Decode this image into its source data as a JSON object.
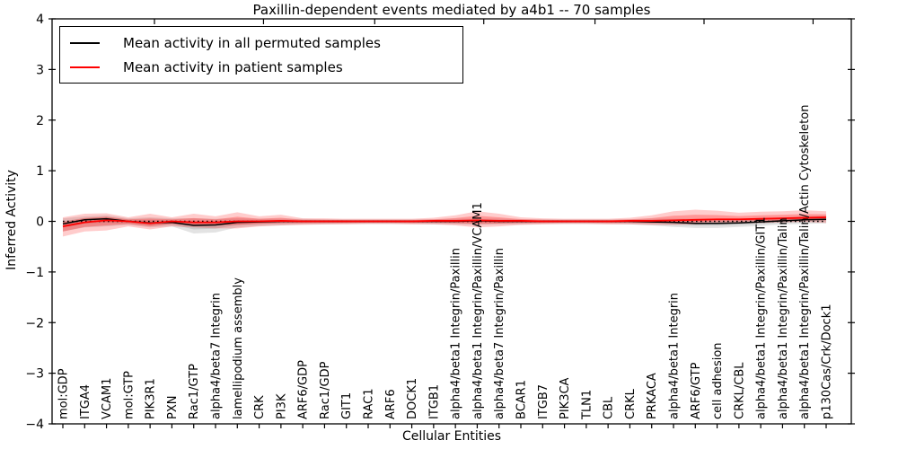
{
  "chart_data": {
    "type": "line",
    "title": "Paxillin-dependent events mediated by a4b1 -- 70 samples",
    "xlabel": "Cellular Entities",
    "ylabel": "Inferred Activity",
    "ylim": [
      -4,
      4
    ],
    "yticks": [
      -4,
      -3,
      -2,
      -1,
      0,
      1,
      2,
      3,
      4
    ],
    "grid": false,
    "legend_position": "upper left",
    "baseline": {
      "y": 0,
      "style": "dotted",
      "color": "#000000"
    },
    "top_ticks_x": [
      4.2,
      9.2,
      14.3,
      19.3,
      24.4,
      29.4,
      34.4
    ],
    "categories": [
      "mol:GDP",
      "ITGA4",
      "VCAM1",
      "mol:GTP",
      "PIK3R1",
      "PXN",
      "Rac1/GTP",
      "alpha4/beta7 Integrin",
      "lamellipodium assembly",
      "CRK",
      "PI3K",
      "ARF6/GDP",
      "Rac1/GDP",
      "GIT1",
      "RAC1",
      "ARF6",
      "DOCK1",
      "ITGB1",
      "alpha4/beta1 Integrin/Paxillin",
      "alpha4/beta1 Integrin/Paxillin/VCAM1",
      "alpha4/beta7 Integrin/Paxillin",
      "BCAR1",
      "ITGB7",
      "PIK3CA",
      "TLN1",
      "CBL",
      "CRKL",
      "PRKACA",
      "alpha4/beta1 Integrin",
      "ARF6/GTP",
      "cell adhesion",
      "CRKL/CBL",
      "alpha4/beta1 Integrin/Paxillin/GIT1",
      "alpha4/beta1 Integrin/Paxillin/Talin",
      "alpha4/beta1 Integrin/Paxillin/Talin/Actin Cytoskeleton",
      "p130Cas/Crk/Dock1"
    ],
    "series": [
      {
        "name": "Mean activity in all permuted samples",
        "color": "#000000",
        "values": [
          -0.05,
          0.03,
          0.05,
          0.0,
          -0.03,
          -0.02,
          -0.08,
          -0.07,
          -0.02,
          -0.01,
          0,
          0,
          0,
          0,
          0,
          0,
          0,
          0,
          0,
          0.01,
          0,
          0,
          0,
          0,
          0,
          0,
          0,
          -0.01,
          -0.02,
          -0.04,
          -0.04,
          -0.03,
          -0.01,
          0.01,
          0.03,
          0.04
        ]
      },
      {
        "name": "Mean activity in patient samples",
        "color": "#ff0000",
        "values": [
          -0.1,
          -0.02,
          0.02,
          0.0,
          -0.04,
          0.0,
          -0.02,
          -0.02,
          0.0,
          0.0,
          0.01,
          0,
          0,
          0,
          0,
          0,
          0,
          0.01,
          0.01,
          0.02,
          0.01,
          0.01,
          0,
          0,
          0,
          0,
          0.01,
          0.01,
          0.02,
          0.03,
          0.04,
          0.04,
          0.05,
          0.06,
          0.07,
          0.08
        ]
      }
    ],
    "bands": [
      {
        "series": "Mean activity in all permuted samples",
        "color": "#000000",
        "upper": [
          0.06,
          0.1,
          0.12,
          0.06,
          0.08,
          0.06,
          0.06,
          0.05,
          0.06,
          0.05,
          0.05,
          0.05,
          0.04,
          0.04,
          0.04,
          0.04,
          0.04,
          0.04,
          0.05,
          0.05,
          0.05,
          0.04,
          0.04,
          0.04,
          0.04,
          0.04,
          0.04,
          0.05,
          0.05,
          0.05,
          0.05,
          0.05,
          0.06,
          0.08,
          0.1,
          0.11
        ],
        "lower": [
          -0.2,
          -0.12,
          -0.1,
          -0.07,
          -0.12,
          -0.1,
          -0.24,
          -0.22,
          -0.12,
          -0.09,
          -0.08,
          -0.06,
          -0.06,
          -0.05,
          -0.05,
          -0.05,
          -0.05,
          -0.06,
          -0.06,
          -0.07,
          -0.06,
          -0.06,
          -0.05,
          -0.05,
          -0.05,
          -0.05,
          -0.06,
          -0.08,
          -0.11,
          -0.13,
          -0.13,
          -0.11,
          -0.09,
          -0.06,
          -0.05,
          -0.04
        ]
      },
      {
        "series": "Mean activity in patient samples",
        "color": "#ff0000",
        "upper": [
          0.08,
          0.15,
          0.16,
          0.08,
          0.15,
          0.08,
          0.15,
          0.1,
          0.18,
          0.1,
          0.13,
          0.06,
          0.06,
          0.05,
          0.05,
          0.05,
          0.05,
          0.07,
          0.12,
          0.2,
          0.15,
          0.08,
          0.06,
          0.05,
          0.05,
          0.05,
          0.07,
          0.12,
          0.2,
          0.23,
          0.21,
          0.17,
          0.19,
          0.2,
          0.22,
          0.2
        ],
        "lower": [
          -0.3,
          -0.2,
          -0.18,
          -0.1,
          -0.16,
          -0.1,
          -0.12,
          -0.14,
          -0.14,
          -0.1,
          -0.08,
          -0.07,
          -0.06,
          -0.06,
          -0.05,
          -0.05,
          -0.06,
          -0.06,
          -0.08,
          -0.12,
          -0.1,
          -0.07,
          -0.06,
          -0.05,
          -0.05,
          -0.06,
          -0.06,
          -0.07,
          -0.07,
          -0.06,
          -0.05,
          -0.04,
          -0.03,
          -0.02,
          -0.01,
          -0.03
        ]
      }
    ]
  }
}
